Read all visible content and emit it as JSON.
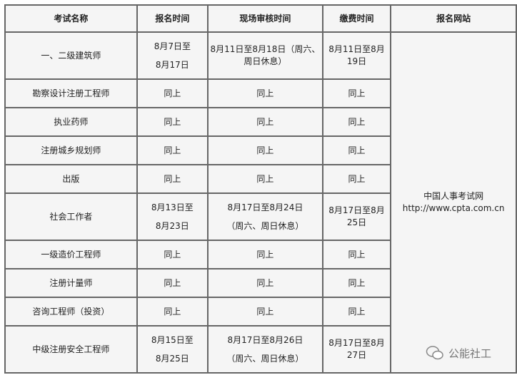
{
  "headers": [
    "考试名称",
    "报名时间",
    "现场审核时间",
    "缴费时间",
    "报名网站"
  ],
  "rows": [
    {
      "name": "一、二级建筑师",
      "reg": [
        "8月7日至",
        "8月17日"
      ],
      "review": "8月11日至8月18日（周六、周日休息）",
      "fee": "8月11日至8月19日"
    },
    {
      "name": "勘察设计注册工程师",
      "reg": [
        "同上"
      ],
      "review": "同上",
      "fee": "同上"
    },
    {
      "name": "执业药师",
      "reg": [
        "同上"
      ],
      "review": "同上",
      "fee": "同上"
    },
    {
      "name": "注册城乡规划师",
      "reg": [
        "同上"
      ],
      "review": "同上",
      "fee": "同上"
    },
    {
      "name": "出版",
      "reg": [
        "同上"
      ],
      "review": "同上",
      "fee": "同上"
    },
    {
      "name": "社会工作者",
      "reg": [
        "8月13日至",
        "8月23日"
      ],
      "review2": [
        "8月17日至8月24日",
        "（周六、周日休息）"
      ],
      "fee": "8月17日至8月25日"
    },
    {
      "name": "一级造价工程师",
      "reg": [
        "同上"
      ],
      "review": "同上",
      "fee": "同上"
    },
    {
      "name": "注册计量师",
      "reg": [
        "同上"
      ],
      "review": "同上",
      "fee": "同上"
    },
    {
      "name": "咨询工程师（投资）",
      "reg": [
        "同上"
      ],
      "review": "同上",
      "fee": "同上"
    },
    {
      "name": "中级注册安全工程师",
      "reg": [
        "8月15日至",
        "8月25日"
      ],
      "review2": [
        "8月17日至8月26日",
        "（周六、周日休息）"
      ],
      "fee": "8月17日至8月27日"
    }
  ],
  "website": {
    "name": "中国人事考试网",
    "url": "http://www.cpta.com.cn"
  },
  "watermark": {
    "icon": "wechat-icon",
    "text": "公能社工"
  }
}
